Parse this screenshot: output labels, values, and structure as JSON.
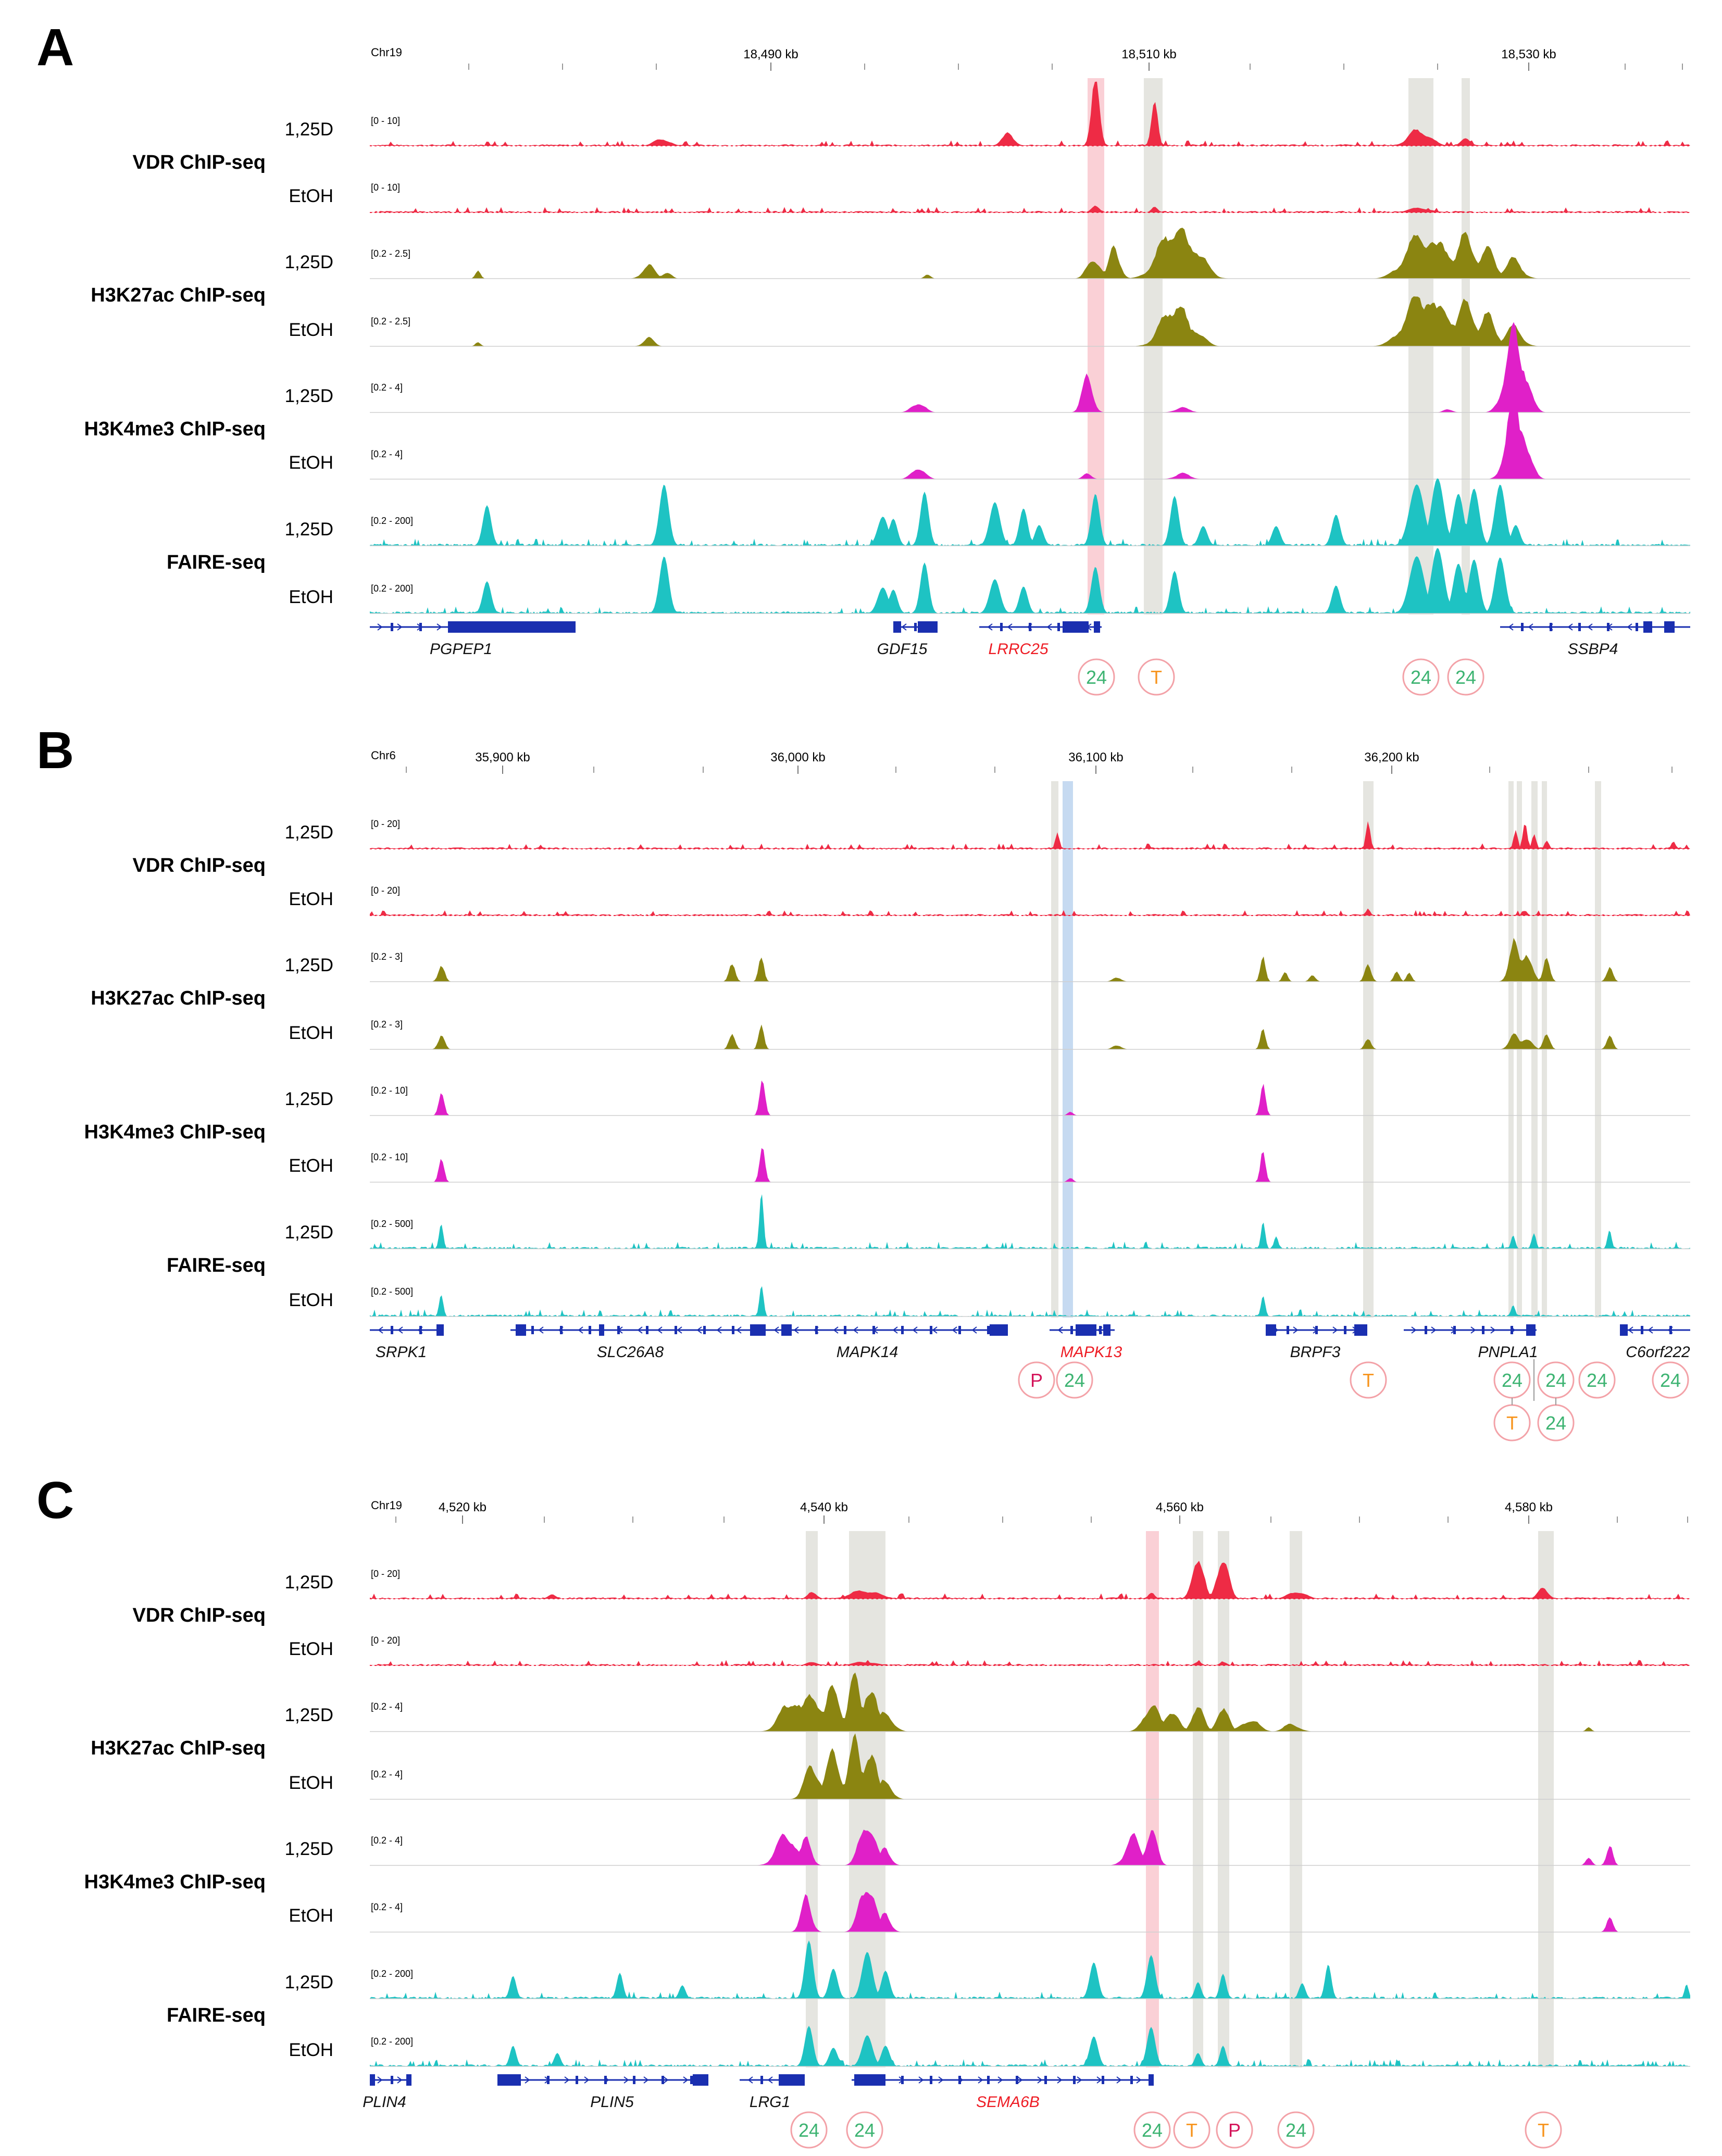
{
  "colors": {
    "vdr": "#ee2b45",
    "h3k27ac": "#8b8511",
    "h3k4me3": "#e020c8",
    "faire": "#1ec3c3",
    "gene": "#1a2fb0",
    "highlight_gene": "#ee1c24",
    "band_grey": "#e1e1da",
    "band_pink": "#f9c8cf",
    "band_blue": "#bcd3ee",
    "badge_24": "#3cb371",
    "badge_T": "#f7941d",
    "badge_P": "#d4145a",
    "badge_ring": "#f3a2a8"
  },
  "panels": [
    {
      "letter": "A",
      "chrom": "Chr19",
      "ticks": [
        "18,490 kb",
        "18,510 kb",
        "18,530 kb"
      ],
      "assays": [
        "VDR ChIP-seq",
        "H3K27ac ChIP-seq",
        "H3K4me3 ChIP-seq",
        "FAIRE-seq"
      ],
      "tracks": [
        {
          "cond": "1,25D",
          "range": "[0 - 10]",
          "assay": "vdr"
        },
        {
          "cond": "EtOH",
          "range": "[0 - 10]",
          "assay": "vdr"
        },
        {
          "cond": "1,25D",
          "range": "[0.2 - 2.5]",
          "assay": "h3k27ac"
        },
        {
          "cond": "EtOH",
          "range": "[0.2 - 2.5]",
          "assay": "h3k27ac"
        },
        {
          "cond": "1,25D",
          "range": "[0.2 - 4]",
          "assay": "h3k4me3"
        },
        {
          "cond": "EtOH",
          "range": "[0.2 - 4]",
          "assay": "h3k4me3"
        },
        {
          "cond": "1,25D",
          "range": "[0.2 - 200]",
          "assay": "faire"
        },
        {
          "cond": "EtOH",
          "range": "[0.2 - 200]",
          "assay": "faire"
        }
      ],
      "genes": [
        {
          "name": "PGPEP1",
          "highlight": false
        },
        {
          "name": "GDF15",
          "highlight": false
        },
        {
          "name": "LRRC25",
          "highlight": true
        },
        {
          "name": "SSBP4",
          "highlight": false
        }
      ],
      "badges": [
        "24",
        "T",
        "24",
        "24"
      ]
    },
    {
      "letter": "B",
      "chrom": "Chr6",
      "ticks": [
        "35,900 kb",
        "36,000 kb",
        "36,100 kb",
        "36,200 kb"
      ],
      "assays": [
        "VDR ChIP-seq",
        "H3K27ac ChIP-seq",
        "H3K4me3 ChIP-seq",
        "FAIRE-seq"
      ],
      "tracks": [
        {
          "cond": "1,25D",
          "range": "[0 - 20]",
          "assay": "vdr"
        },
        {
          "cond": "EtOH",
          "range": "[0 - 20]",
          "assay": "vdr"
        },
        {
          "cond": "1,25D",
          "range": "[0.2 - 3]",
          "assay": "h3k27ac"
        },
        {
          "cond": "EtOH",
          "range": "[0.2 - 3]",
          "assay": "h3k27ac"
        },
        {
          "cond": "1,25D",
          "range": "[0.2 - 10]",
          "assay": "h3k4me3"
        },
        {
          "cond": "EtOH",
          "range": "[0.2 - 10]",
          "assay": "h3k4me3"
        },
        {
          "cond": "1,25D",
          "range": "[0.2 - 500]",
          "assay": "faire"
        },
        {
          "cond": "EtOH",
          "range": "[0.2 - 500]",
          "assay": "faire"
        }
      ],
      "genes": [
        {
          "name": "SRPK1",
          "highlight": false
        },
        {
          "name": "SLC26A8",
          "highlight": false
        },
        {
          "name": "MAPK14",
          "highlight": false
        },
        {
          "name": "MAPK13",
          "highlight": true
        },
        {
          "name": "BRPF3",
          "highlight": false
        },
        {
          "name": "PNPLA1",
          "highlight": false
        },
        {
          "name": "C6orf222",
          "highlight": false
        }
      ],
      "badges": [
        "P",
        "24",
        "T",
        "24",
        "24",
        "24",
        "24",
        "T",
        "24"
      ]
    },
    {
      "letter": "C",
      "chrom": "Chr19",
      "ticks": [
        "4,520 kb",
        "4,540 kb",
        "4,560 kb",
        "4,580 kb"
      ],
      "assays": [
        "VDR ChIP-seq",
        "H3K27ac ChIP-seq",
        "H3K4me3 ChIP-seq",
        "FAIRE-seq"
      ],
      "tracks": [
        {
          "cond": "1,25D",
          "range": "[0 - 20]",
          "assay": "vdr"
        },
        {
          "cond": "EtOH",
          "range": "[0 - 20]",
          "assay": "vdr"
        },
        {
          "cond": "1,25D",
          "range": "[0.2 - 4]",
          "assay": "h3k27ac"
        },
        {
          "cond": "EtOH",
          "range": "[0.2 - 4]",
          "assay": "h3k27ac"
        },
        {
          "cond": "1,25D",
          "range": "[0.2 - 4]",
          "assay": "h3k4me3"
        },
        {
          "cond": "EtOH",
          "range": "[0.2 - 4]",
          "assay": "h3k4me3"
        },
        {
          "cond": "1,25D",
          "range": "[0.2 - 200]",
          "assay": "faire"
        },
        {
          "cond": "EtOH",
          "range": "[0.2 - 200]",
          "assay": "faire"
        }
      ],
      "genes": [
        {
          "name": "PLIN4",
          "highlight": false
        },
        {
          "name": "PLIN5",
          "highlight": false
        },
        {
          "name": "LRG1",
          "highlight": false
        },
        {
          "name": "SEMA6B",
          "highlight": true
        }
      ],
      "badges": [
        "24",
        "24",
        "24",
        "T",
        "P",
        "24",
        "T"
      ]
    }
  ]
}
